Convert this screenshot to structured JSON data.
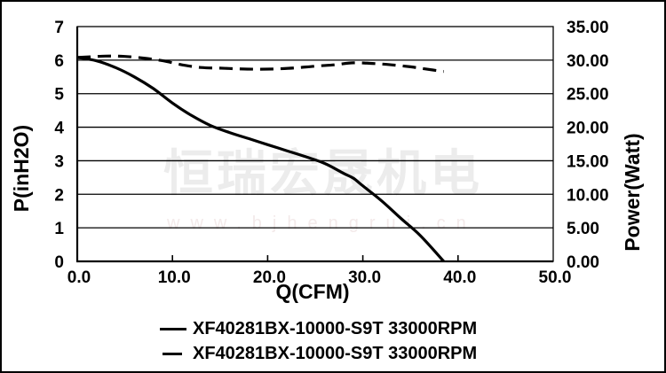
{
  "chart_data": {
    "type": "line",
    "title": "",
    "xlabel": "Q(CFM)",
    "ylabel_left": "P(inH2O)",
    "ylabel_right": "Power(Watt)",
    "xlim": [
      0,
      50
    ],
    "ylim_left": [
      0,
      7
    ],
    "ylim_right": [
      0,
      35
    ],
    "x_ticks": [
      "0.0",
      "10.0",
      "20.0",
      "30.0",
      "40.0",
      "50.0"
    ],
    "y_ticks_left": [
      "0",
      "1",
      "2",
      "3",
      "4",
      "5",
      "6",
      "7"
    ],
    "y_ticks_right": [
      "0.00",
      "5.00",
      "10.00",
      "15.00",
      "20.00",
      "25.00",
      "30.00",
      "35.00"
    ],
    "grid": "horizontal",
    "legend_position": "bottom",
    "series": [
      {
        "name": "XF40281BX-10000-S9T 33000RPM",
        "style": "solid",
        "axis": "left",
        "unit": "inH2O",
        "points": [
          [
            0,
            6.08
          ],
          [
            2,
            5.98
          ],
          [
            4,
            5.78
          ],
          [
            6,
            5.5
          ],
          [
            8,
            5.15
          ],
          [
            10,
            4.72
          ],
          [
            12,
            4.35
          ],
          [
            14,
            4.05
          ],
          [
            16,
            3.84
          ],
          [
            18,
            3.66
          ],
          [
            20,
            3.48
          ],
          [
            22,
            3.3
          ],
          [
            24,
            3.12
          ],
          [
            26,
            2.92
          ],
          [
            28,
            2.62
          ],
          [
            29,
            2.48
          ],
          [
            30,
            2.25
          ],
          [
            32,
            1.8
          ],
          [
            34,
            1.28
          ],
          [
            36,
            0.78
          ],
          [
            38.5,
            0
          ]
        ]
      },
      {
        "name": "XF40281BX-10000-S9T 33000RPM",
        "style": "dashed",
        "axis": "right",
        "unit": "Watt",
        "points": [
          [
            0,
            30.4
          ],
          [
            3,
            30.6
          ],
          [
            5,
            30.55
          ],
          [
            7,
            30.3
          ],
          [
            9,
            29.9
          ],
          [
            11,
            29.3
          ],
          [
            13,
            28.9
          ],
          [
            15,
            28.8
          ],
          [
            17,
            28.7
          ],
          [
            19,
            28.65
          ],
          [
            21,
            28.7
          ],
          [
            23,
            28.85
          ],
          [
            25,
            29.1
          ],
          [
            27,
            29.3
          ],
          [
            29,
            29.6
          ],
          [
            31,
            29.5
          ],
          [
            33,
            29.3
          ],
          [
            35,
            29.0
          ],
          [
            36.5,
            28.7
          ],
          [
            38.5,
            28.3
          ]
        ]
      }
    ]
  },
  "watermark": {
    "company": "恒瑞宏晟机电",
    "website": "www.bjhengrui.cn"
  },
  "colors": {
    "curve": "#000000",
    "grid": "#000000",
    "frame": "#000000",
    "watermark_company": "#ececec",
    "watermark_website": "#f3eaea",
    "background": "#ffffff"
  }
}
